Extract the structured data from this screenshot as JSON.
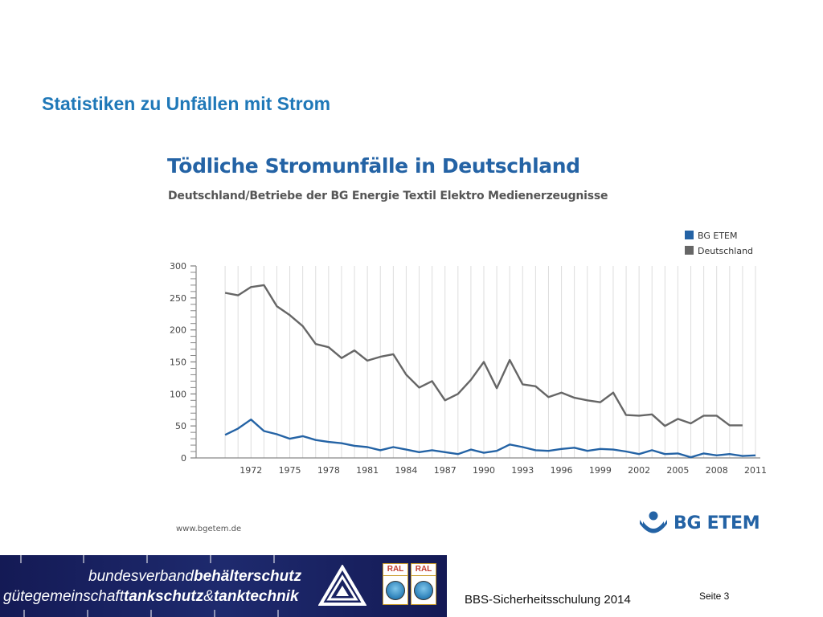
{
  "slide": {
    "title": "Statistiken zu Unfällen mit Strom",
    "footer_text": "BBS-Sicherheitsschulung 2014",
    "page_number": "Seite 3"
  },
  "banner": {
    "line1_light": "bundesverband",
    "line1_bold": "behälterschutz",
    "line2_light": "gütegemeinschaft",
    "line2_bold1": "tankschutz",
    "line2_amp": "&",
    "line2_bold2": "tanktechnik",
    "ral_label_1": "RAL",
    "ral_label_2": "RAL"
  },
  "source": "www.bgetem.de",
  "logo_text": "BG ETEM",
  "colors": {
    "title_blue": "#1f78b8",
    "chart_title_blue": "#2463a5",
    "bg_etem_series": "#2463a5",
    "deutschland_series": "#666666",
    "banner_navy": "#1a2466"
  },
  "chart_data": {
    "type": "line",
    "title": "Tödliche Stromunfälle in Deutschland",
    "subtitle": "Deutschland/Betriebe der BG Energie Textil Elektro Medienerzeugnisse",
    "xlabel": "",
    "ylabel": "",
    "ylim": [
      0,
      300
    ],
    "yticks": [
      0,
      50,
      100,
      150,
      200,
      250,
      300
    ],
    "xlim": [
      1969,
      2011
    ],
    "xticks": [
      1972,
      1975,
      1978,
      1981,
      1984,
      1987,
      1990,
      1993,
      1996,
      1999,
      2002,
      2005,
      2008,
      2011
    ],
    "grid": "vertical",
    "legend": "top-right",
    "x": [
      1970,
      1971,
      1972,
      1973,
      1974,
      1975,
      1976,
      1977,
      1978,
      1979,
      1980,
      1981,
      1982,
      1983,
      1984,
      1985,
      1986,
      1987,
      1988,
      1989,
      1990,
      1991,
      1992,
      1993,
      1994,
      1995,
      1996,
      1997,
      1998,
      1999,
      2000,
      2001,
      2002,
      2003,
      2004,
      2005,
      2006,
      2007,
      2008,
      2009,
      2010,
      2011
    ],
    "series": [
      {
        "name": "BG ETEM",
        "color": "#2463a5",
        "values": [
          36,
          46,
          60,
          42,
          37,
          30,
          34,
          28,
          25,
          23,
          19,
          17,
          12,
          17,
          13,
          9,
          12,
          9,
          6,
          13,
          8,
          11,
          21,
          17,
          12,
          11,
          14,
          16,
          11,
          14,
          13,
          10,
          6,
          12,
          6,
          7,
          1,
          7,
          4,
          6,
          3,
          4
        ]
      },
      {
        "name": "Deutschland",
        "color": "#666666",
        "values": [
          258,
          254,
          267,
          270,
          237,
          223,
          206,
          178,
          173,
          156,
          168,
          152,
          158,
          162,
          130,
          110,
          120,
          90,
          100,
          122,
          150,
          109,
          153,
          115,
          112,
          95,
          102,
          94,
          90,
          87,
          102,
          67,
          66,
          68,
          50,
          61,
          54,
          66,
          66,
          51,
          51,
          null
        ]
      }
    ]
  }
}
